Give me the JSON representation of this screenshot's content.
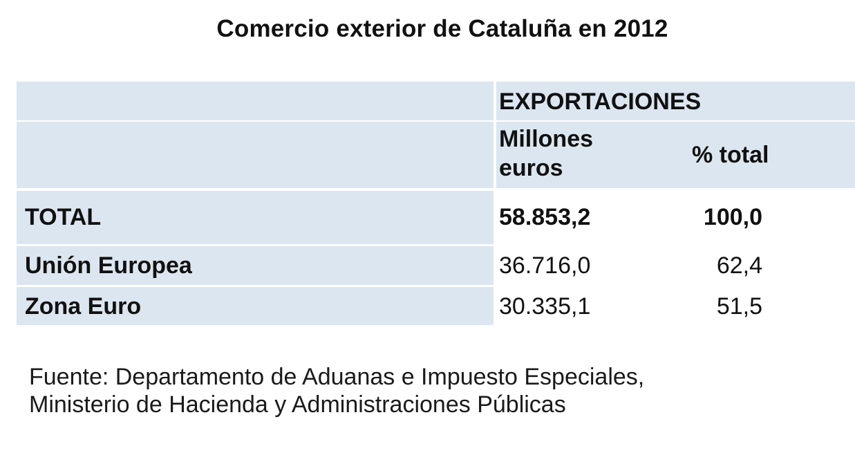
{
  "title": "Comercio exterior de Cataluña en 2012",
  "table": {
    "header_group": "EXPORTACIONES",
    "col_value_line1": "Millones",
    "col_value_line2": "euros",
    "col_pct": "% total",
    "rows": [
      {
        "label": "TOTAL",
        "value": "58.853,2",
        "pct": "100,0"
      },
      {
        "label": "Unión Europea",
        "value": "36.716,0",
        "pct": "62,4"
      },
      {
        "label": "Zona Euro",
        "value": "30.335,1",
        "pct": "51,5"
      }
    ]
  },
  "source": {
    "line1": "Fuente: Departamento de Aduanas e Impuesto Especiales,",
    "line2": "Ministerio de Hacienda y Administraciones Públicas"
  },
  "colors": {
    "cell_background": "#dce6f0",
    "text": "#111111"
  }
}
